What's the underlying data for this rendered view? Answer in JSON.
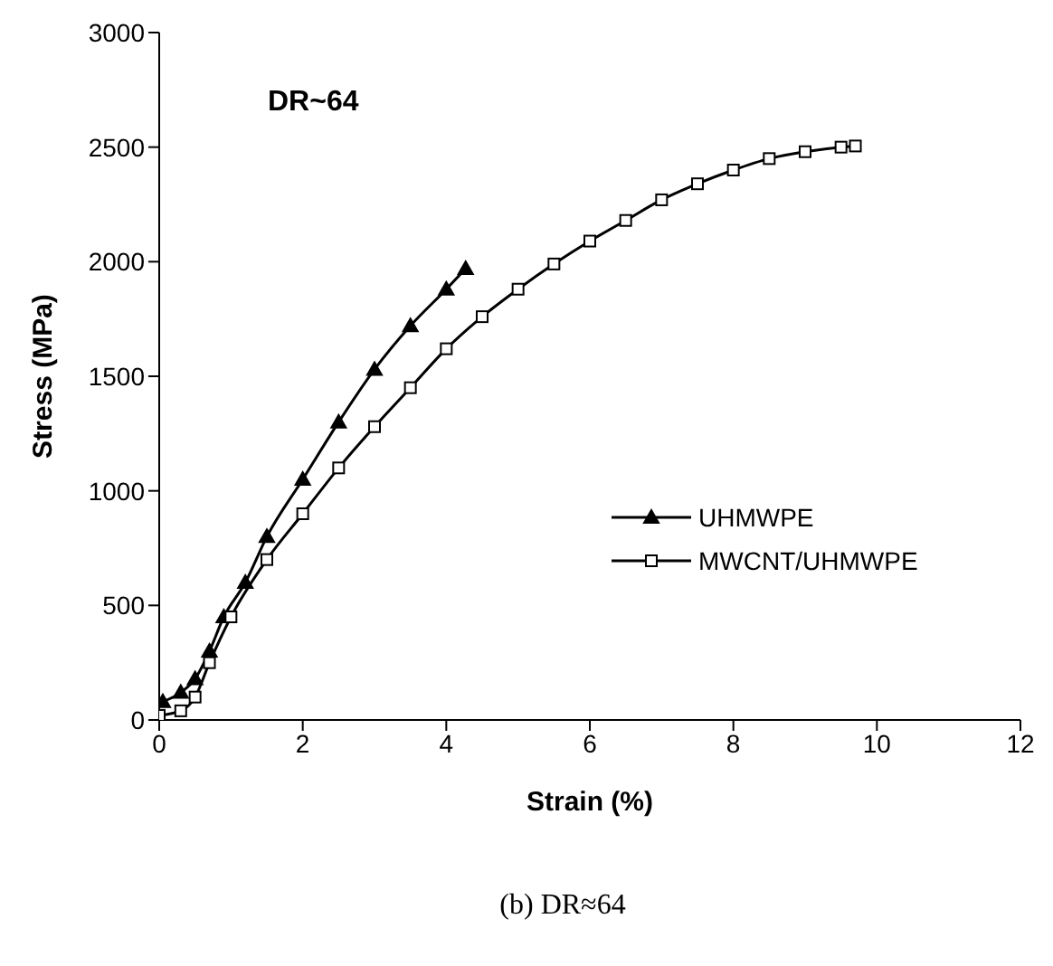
{
  "chart_data": {
    "type": "line",
    "xlabel": "Strain (%)",
    "ylabel": "Stress (MPa)",
    "xlim": [
      0,
      12
    ],
    "xticks": [
      0,
      2,
      4,
      6,
      8,
      10,
      12
    ],
    "ylim": [
      0,
      3000
    ],
    "yticks": [
      0,
      500,
      1000,
      1500,
      2000,
      2500,
      3000
    ],
    "legend": "right",
    "annotations": [
      "DR~64",
      "(b) DR≈64"
    ],
    "series": [
      {
        "name": "UHMWPE",
        "color": "#000000",
        "marker": "triangle",
        "x": [
          0.05,
          0.3,
          0.5,
          0.7,
          0.9,
          1.2,
          1.5,
          2,
          2.5,
          3,
          3.5,
          4,
          4.27
        ],
        "values": [
          80,
          120,
          180,
          300,
          450,
          600,
          800,
          1050,
          1300,
          1530,
          1720,
          1880,
          1970
        ]
      },
      {
        "name": "MWCNT/UHMWPE",
        "color": "#000000",
        "marker": "square",
        "x": [
          0,
          0.3,
          0.5,
          0.7,
          1,
          1.5,
          2,
          2.5,
          3,
          3.5,
          4,
          4.5,
          5,
          5.5,
          6,
          6.5,
          7,
          7.5,
          8,
          8.5,
          9,
          9.5,
          9.7
        ],
        "values": [
          20,
          40,
          100,
          250,
          450,
          700,
          900,
          1100,
          1280,
          1450,
          1620,
          1760,
          1880,
          1990,
          2090,
          2180,
          2270,
          2340,
          2400,
          2450,
          2480,
          2500,
          2505
        ]
      }
    ]
  }
}
